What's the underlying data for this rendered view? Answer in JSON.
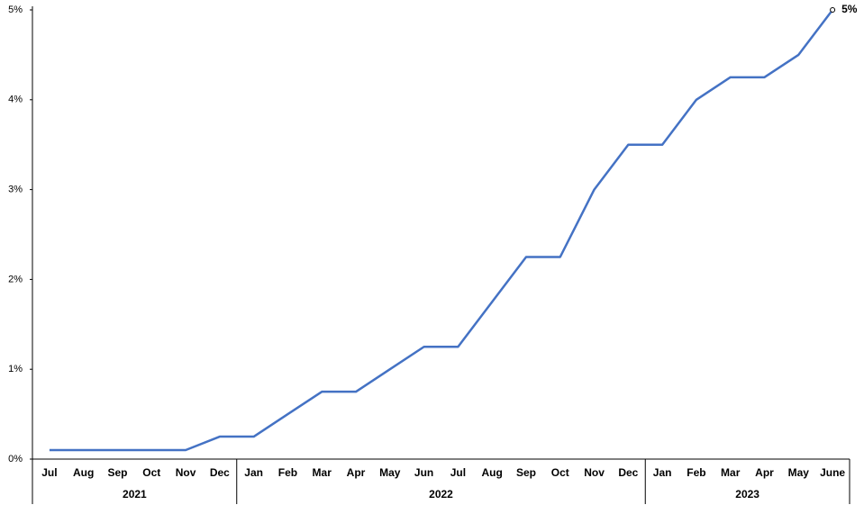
{
  "chart_data": {
    "type": "line",
    "category_groups": [
      {
        "name": "2021",
        "categories": [
          "Jul",
          "Aug",
          "Sep",
          "Oct",
          "Nov",
          "Dec"
        ]
      },
      {
        "name": "2022",
        "categories": [
          "Jan",
          "Feb",
          "Mar",
          "Apr",
          "May",
          "Jun",
          "Jul",
          "Aug",
          "Sep",
          "Oct",
          "Nov",
          "Dec"
        ]
      },
      {
        "name": "2023",
        "categories": [
          "Jan",
          "Feb",
          "Mar",
          "Apr",
          "May",
          "June"
        ]
      }
    ],
    "series": [
      {
        "color": "#4472c4",
        "values": [
          0.1,
          0.1,
          0.1,
          0.1,
          0.1,
          0.25,
          0.25,
          0.5,
          0.75,
          0.75,
          1.0,
          1.25,
          1.25,
          1.75,
          2.25,
          2.25,
          3.0,
          3.5,
          3.5,
          4.0,
          4.25,
          4.25,
          4.5,
          5.0
        ],
        "value_labels": [
          null,
          null,
          null,
          null,
          null,
          null,
          null,
          null,
          null,
          null,
          null,
          null,
          null,
          null,
          null,
          null,
          null,
          null,
          null,
          null,
          null,
          null,
          null,
          "5%"
        ]
      }
    ],
    "ylim": [
      0,
      5
    ],
    "yticks": [
      {
        "value": 0,
        "label": "0%"
      },
      {
        "value": 1,
        "label": "1%"
      },
      {
        "value": 2,
        "label": "2%"
      },
      {
        "value": 3,
        "label": "3%"
      },
      {
        "value": 4,
        "label": "4%"
      },
      {
        "value": 5,
        "label": "5%"
      }
    ],
    "grid": false
  }
}
